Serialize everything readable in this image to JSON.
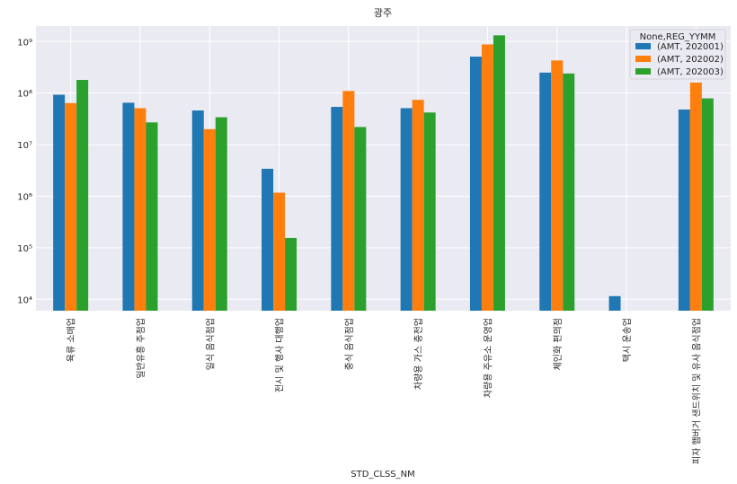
{
  "chart_data": {
    "type": "bar",
    "title": "광주",
    "xlabel": "STD_CLSS_NM",
    "ylabel": "",
    "yscale": "log",
    "ylim": [
      6000,
      2000000000
    ],
    "yticks": [
      {
        "value": 10000,
        "label": "10⁴"
      },
      {
        "value": 100000,
        "label": "10⁵"
      },
      {
        "value": 1000000,
        "label": "10⁶"
      },
      {
        "value": 10000000,
        "label": "10⁷"
      },
      {
        "value": 100000000,
        "label": "10⁸"
      },
      {
        "value": 1000000000,
        "label": "10⁹"
      }
    ],
    "grid": true,
    "legend": {
      "title": "None,REG_YYMM",
      "placement": "top-right"
    },
    "categories": [
      "육류 소매업",
      "일반유흥 주점업",
      "일식 음식점업",
      "전시 및 행사 대행업",
      "중식 음식점업",
      "차량용 가스 충전업",
      "차량용 주유소 운영업",
      "체인화 편의점",
      "택시 운송업",
      "피자 햄버거 샌드위치 및 유사 음식점업"
    ],
    "series": [
      {
        "name": "(AMT, 202001)",
        "color": "#1f77b4",
        "values": [
          93000000,
          65000000,
          46000000,
          3400000,
          54000000,
          51000000,
          510000000,
          250000000,
          11500,
          48000000
        ]
      },
      {
        "name": "(AMT, 202002)",
        "color": "#ff7f0e",
        "values": [
          64000000,
          51000000,
          20000000,
          1170000,
          110000000,
          74000000,
          880000000,
          430000000,
          null,
          160000000
        ]
      },
      {
        "name": "(AMT, 202003)",
        "color": "#2ca02c",
        "values": [
          180000000,
          27000000,
          34000000,
          155000,
          22000000,
          42000000,
          1320000000,
          240000000,
          null,
          79000000
        ]
      }
    ]
  }
}
